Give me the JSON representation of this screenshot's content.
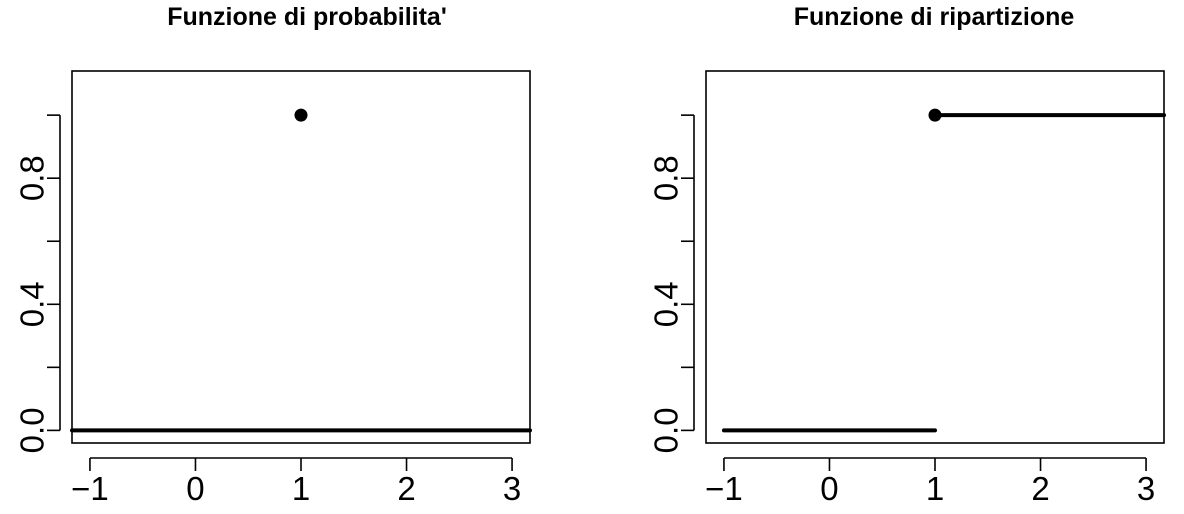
{
  "chart_data": [
    {
      "type": "scatter",
      "title": "Funzione di probabilita'",
      "xlim": [
        -1.17,
        3.17
      ],
      "ylim": [
        -0.04,
        1.14
      ],
      "xticks": [
        -1,
        0,
        1,
        2,
        3
      ],
      "xtick_labels": [
        "−1",
        "0",
        "1",
        "2",
        "3"
      ],
      "yticks": [
        0.0,
        0.2,
        0.4,
        0.6,
        0.8,
        1.0
      ],
      "ytick_labels": [
        "0.0",
        "",
        "0.4",
        "",
        "0.8",
        ""
      ],
      "points": [
        {
          "x": 1,
          "y": 1.0
        }
      ],
      "segments": [
        {
          "x": [
            -1.17,
            3.17
          ],
          "y": [
            0,
            0
          ]
        }
      ],
      "grid": false
    },
    {
      "type": "line",
      "title": "Funzione di ripartizione",
      "xlim": [
        -1.17,
        3.17
      ],
      "ylim": [
        -0.04,
        1.14
      ],
      "xticks": [
        -1,
        0,
        1,
        2,
        3
      ],
      "xtick_labels": [
        "−1",
        "0",
        "1",
        "2",
        "3"
      ],
      "yticks": [
        0.0,
        0.2,
        0.4,
        0.6,
        0.8,
        1.0
      ],
      "ytick_labels": [
        "0.0",
        "",
        "0.4",
        "",
        "0.8",
        ""
      ],
      "points": [
        {
          "x": 1,
          "y": 1.0
        }
      ],
      "segments": [
        {
          "x": [
            -1,
            1
          ],
          "y": [
            0,
            0
          ]
        },
        {
          "x": [
            1,
            3.17
          ],
          "y": [
            1,
            1
          ]
        }
      ],
      "grid": false
    }
  ]
}
